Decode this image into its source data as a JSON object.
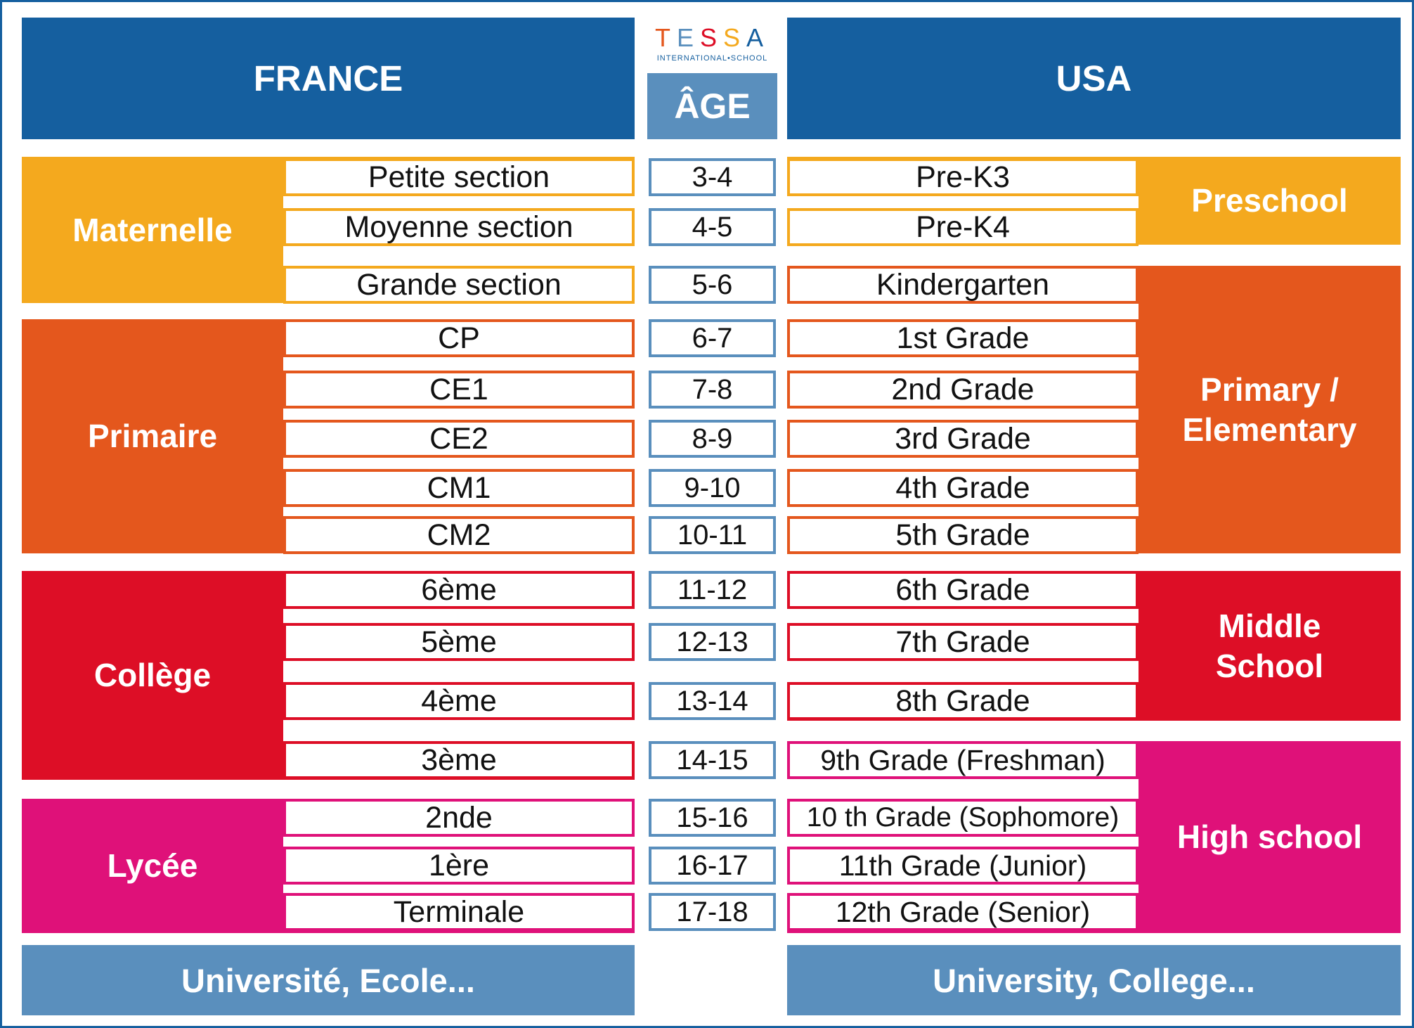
{
  "colors": {
    "header_blue": "#155f9f",
    "light_blue": "#5a8fbd",
    "maternelle": "#f4a91e",
    "primaire": "#e4571d",
    "college": "#dd0e26",
    "lycee": "#df1179"
  },
  "logo": {
    "letters": [
      {
        "char": "T",
        "color": "#e4571d"
      },
      {
        "char": "E",
        "color": "#5a8fbd"
      },
      {
        "char": "S",
        "color": "#dd0e26"
      },
      {
        "char": "S",
        "color": "#f4a91e"
      },
      {
        "char": "A",
        "color": "#155f9f"
      }
    ],
    "subtitle": "INTERNATIONAL•SCHOOL"
  },
  "headers": {
    "france": "FRANCE",
    "age": "ÂGE",
    "usa": "USA"
  },
  "france": {
    "groups": [
      {
        "label": "Maternelle",
        "color": "#f4a91e"
      },
      {
        "label": "Primaire",
        "color": "#e4571d"
      },
      {
        "label": "Collège",
        "color": "#dd0e26"
      },
      {
        "label": "Lycée",
        "color": "#df1179"
      }
    ],
    "grades": [
      "Petite section",
      "Moyenne section",
      "Grande section",
      "CP",
      "CE1",
      "CE2",
      "CM1",
      "CM2",
      "6ème",
      "5ème",
      "4ème",
      "3ème",
      "2nde",
      "1ère",
      "Terminale"
    ]
  },
  "ages": [
    "3-4",
    "4-5",
    "5-6",
    "6-7",
    "7-8",
    "8-9",
    "9-10",
    "10-11",
    "11-12",
    "12-13",
    "13-14",
    "14-15",
    "15-16",
    "16-17",
    "17-18"
  ],
  "usa": {
    "groups": [
      {
        "label": "Preschool",
        "color": "#f4a91e"
      },
      {
        "label": "Primary /\nElementary",
        "color": "#e4571d"
      },
      {
        "label": "Middle\nSchool",
        "color": "#dd0e26"
      },
      {
        "label": "High school",
        "color": "#df1179"
      }
    ],
    "grades": [
      "Pre-K3",
      "Pre-K4",
      "Kindergarten",
      "1st Grade",
      "2nd Grade",
      "3rd Grade",
      "4th Grade",
      "5th Grade",
      "6th Grade",
      "7th Grade",
      "8th Grade",
      "9th Grade (Freshman)",
      "10 th Grade (Sophomore)",
      "11th Grade (Junior)",
      "12th Grade (Senior)"
    ]
  },
  "footers": {
    "france": "Université, Ecole...",
    "usa": "University, College..."
  }
}
